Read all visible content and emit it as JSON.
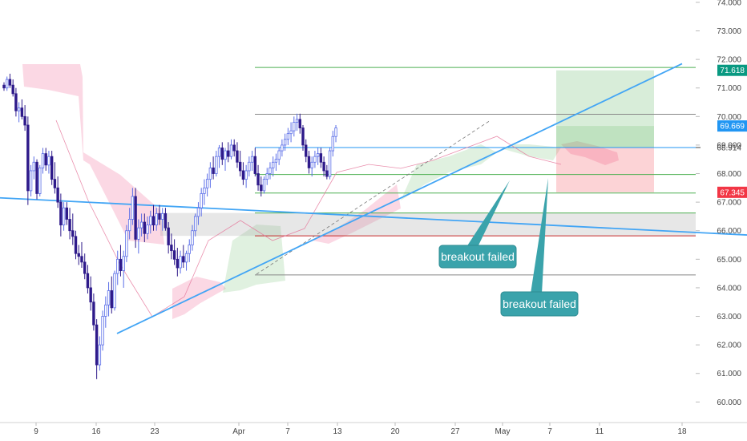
{
  "chart_data": {
    "type": "candlestick",
    "y_axis": {
      "ticks": [
        "60.000",
        "61.000",
        "62.000",
        "63.000",
        "64.000",
        "65.000",
        "66.000",
        "67.000",
        "68.000",
        "69.000",
        "70.000",
        "71.000",
        "72.000",
        "73.000",
        "74.000"
      ],
      "range": [
        59.5,
        74.2
      ],
      "position": "right"
    },
    "x_axis": {
      "ticks": [
        "9",
        "16",
        "23",
        "Apr",
        "7",
        "13",
        "20",
        "27",
        "May",
        "7",
        "11",
        "18"
      ]
    },
    "price_tags": [
      {
        "label": "71.618",
        "value": 71.618,
        "color": "#089981"
      },
      {
        "label": "69.669",
        "value": 69.669,
        "color": "#2196f3"
      },
      {
        "label": "68.914",
        "value": 68.914,
        "color": "none"
      },
      {
        "label": "67.345",
        "value": 67.345,
        "color": "#f23645"
      }
    ],
    "horizontal_levels": [
      {
        "value": 71.72,
        "color": "#4caf50"
      },
      {
        "value": 70.08,
        "color": "#888888"
      },
      {
        "value": 68.914,
        "color": "#2196f3"
      },
      {
        "value": 67.97,
        "color": "#4caf50"
      },
      {
        "value": 67.32,
        "color": "#4caf50"
      },
      {
        "value": 66.62,
        "color": "#4caf50"
      },
      {
        "value": 65.82,
        "color": "#c62828"
      },
      {
        "value": 64.45,
        "color": "#888888"
      }
    ],
    "trend_lines": [
      {
        "name": "ascending",
        "from": {
          "date": "Mar 19",
          "price": 62.4
        },
        "to": {
          "date": "May 18",
          "price": 71.85
        }
      },
      {
        "name": "descending",
        "from": {
          "date": "Feb 28",
          "price": 67.15
        },
        "to": {
          "date": "May 25",
          "price": 65.85
        }
      }
    ],
    "position_box": {
      "entry": 68.914,
      "target": 71.618,
      "stop": 67.345,
      "current": 69.669
    },
    "annotations": [
      {
        "text": "breakout failed",
        "anchor_date": "May 2",
        "anchor_price": 67.9
      },
      {
        "text": "breakout failed",
        "anchor_date": "May 7",
        "anchor_price": 67.75
      }
    ],
    "candles": [
      [
        71.1,
        71.2,
        70.9,
        71.0
      ],
      [
        71.0,
        71.4,
        70.9,
        71.3
      ],
      [
        71.3,
        71.5,
        71.0,
        71.1
      ],
      [
        71.1,
        71.3,
        70.7,
        70.8
      ],
      [
        70.8,
        71.0,
        70.0,
        70.2
      ],
      [
        70.2,
        70.5,
        69.8,
        70.3
      ],
      [
        70.3,
        70.6,
        69.9,
        70.0
      ],
      [
        70.0,
        70.4,
        69.5,
        69.7
      ],
      [
        69.7,
        70.0,
        66.9,
        67.4
      ],
      [
        67.4,
        68.3,
        67.2,
        68.1
      ],
      [
        68.1,
        68.6,
        67.8,
        68.4
      ],
      [
        68.4,
        68.5,
        67.1,
        67.3
      ],
      [
        67.3,
        68.3,
        67.2,
        68.2
      ],
      [
        68.2,
        68.9,
        68.0,
        68.7
      ],
      [
        68.7,
        68.9,
        68.1,
        68.3
      ],
      [
        68.3,
        68.8,
        68.0,
        68.6
      ],
      [
        68.6,
        68.8,
        67.6,
        67.8
      ],
      [
        67.8,
        68.4,
        67.3,
        67.5
      ],
      [
        67.5,
        67.9,
        66.8,
        67.0
      ],
      [
        67.0,
        67.3,
        65.8,
        66.2
      ],
      [
        66.2,
        67.0,
        66.0,
        66.8
      ],
      [
        66.8,
        67.0,
        66.2,
        66.4
      ],
      [
        66.4,
        66.8,
        65.7,
        66.0
      ],
      [
        66.0,
        66.6,
        65.5,
        65.8
      ],
      [
        65.8,
        66.0,
        65.0,
        65.2
      ],
      [
        65.2,
        65.5,
        64.8,
        65.1
      ],
      [
        65.1,
        65.6,
        64.7,
        64.9
      ],
      [
        64.9,
        65.2,
        64.3,
        64.5
      ],
      [
        64.5,
        64.8,
        63.8,
        64.0
      ],
      [
        64.0,
        64.4,
        63.2,
        63.5
      ],
      [
        63.5,
        63.8,
        62.5,
        62.7
      ],
      [
        62.7,
        62.9,
        60.8,
        61.3
      ],
      [
        61.3,
        62.3,
        61.1,
        62.0
      ],
      [
        62.0,
        63.2,
        61.8,
        63.0
      ],
      [
        63.0,
        63.7,
        62.6,
        63.4
      ],
      [
        63.4,
        64.2,
        63.0,
        63.9
      ],
      [
        63.9,
        64.4,
        63.1,
        63.3
      ],
      [
        63.3,
        64.6,
        63.2,
        64.5
      ],
      [
        64.5,
        65.3,
        64.1,
        65.0
      ],
      [
        65.0,
        65.5,
        64.4,
        64.6
      ],
      [
        64.6,
        65.3,
        64.0,
        65.1
      ],
      [
        65.1,
        66.2,
        64.9,
        66.0
      ],
      [
        66.0,
        66.8,
        65.7,
        66.4
      ],
      [
        66.4,
        67.5,
        66.2,
        67.2
      ],
      [
        67.2,
        67.5,
        65.4,
        65.7
      ],
      [
        65.7,
        66.4,
        65.2,
        66.1
      ],
      [
        66.1,
        66.6,
        65.8,
        66.3
      ],
      [
        66.3,
        66.6,
        65.6,
        65.9
      ],
      [
        65.9,
        66.5,
        65.7,
        66.2
      ],
      [
        66.2,
        66.7,
        65.9,
        66.5
      ],
      [
        66.5,
        66.9,
        66.0,
        66.2
      ],
      [
        66.2,
        66.8,
        66.0,
        66.6
      ],
      [
        66.6,
        66.9,
        66.2,
        66.4
      ],
      [
        66.4,
        66.8,
        66.0,
        66.6
      ],
      [
        66.6,
        66.8,
        66.0,
        66.1
      ],
      [
        66.1,
        66.3,
        65.2,
        65.5
      ],
      [
        65.5,
        65.9,
        65.0,
        65.3
      ],
      [
        65.3,
        65.7,
        64.8,
        65.0
      ],
      [
        65.0,
        65.4,
        64.4,
        64.7
      ],
      [
        64.7,
        65.3,
        64.5,
        65.1
      ],
      [
        65.1,
        65.5,
        64.7,
        64.9
      ],
      [
        64.9,
        65.3,
        64.6,
        65.2
      ],
      [
        65.2,
        65.7,
        64.9,
        65.5
      ],
      [
        65.5,
        66.2,
        65.3,
        66.0
      ],
      [
        66.0,
        66.6,
        65.8,
        66.5
      ],
      [
        66.5,
        67.0,
        66.2,
        66.8
      ],
      [
        66.8,
        67.5,
        66.5,
        67.3
      ],
      [
        67.3,
        67.8,
        66.9,
        67.5
      ],
      [
        67.5,
        68.0,
        67.2,
        67.8
      ],
      [
        67.8,
        68.4,
        67.5,
        68.2
      ],
      [
        68.2,
        68.6,
        67.8,
        68.0
      ],
      [
        68.0,
        68.8,
        67.9,
        68.6
      ],
      [
        68.6,
        69.0,
        68.2,
        68.9
      ],
      [
        68.9,
        69.1,
        68.3,
        68.5
      ],
      [
        68.5,
        68.9,
        68.1,
        68.8
      ],
      [
        68.8,
        69.1,
        68.4,
        68.6
      ],
      [
        68.6,
        69.2,
        68.5,
        69.0
      ],
      [
        69.0,
        69.2,
        68.6,
        68.8
      ],
      [
        68.8,
        69.1,
        68.2,
        68.4
      ],
      [
        68.4,
        68.8,
        67.9,
        68.1
      ],
      [
        68.1,
        68.4,
        67.6,
        67.8
      ],
      [
        67.8,
        68.3,
        67.5,
        68.1
      ],
      [
        68.1,
        68.6,
        67.9,
        68.4
      ],
      [
        68.4,
        68.8,
        68.1,
        68.6
      ],
      [
        68.6,
        68.9,
        67.9,
        68.0
      ],
      [
        68.0,
        68.3,
        67.4,
        67.6
      ],
      [
        67.6,
        67.9,
        67.2,
        67.4
      ],
      [
        67.4,
        67.9,
        67.3,
        67.8
      ],
      [
        67.8,
        68.2,
        67.6,
        68.0
      ],
      [
        68.0,
        68.4,
        67.8,
        68.2
      ],
      [
        68.2,
        68.6,
        67.9,
        68.4
      ],
      [
        68.4,
        68.7,
        68.1,
        68.5
      ],
      [
        68.5,
        68.9,
        68.3,
        68.8
      ],
      [
        68.8,
        69.2,
        68.6,
        69.0
      ],
      [
        69.0,
        69.4,
        68.8,
        69.2
      ],
      [
        69.2,
        69.6,
        69.0,
        69.4
      ],
      [
        69.4,
        69.8,
        69.1,
        69.5
      ],
      [
        69.5,
        70.0,
        69.3,
        69.8
      ],
      [
        69.8,
        70.1,
        69.5,
        69.9
      ],
      [
        69.9,
        70.1,
        69.4,
        69.6
      ],
      [
        69.6,
        69.7,
        68.8,
        69.0
      ],
      [
        69.0,
        69.2,
        68.4,
        68.6
      ],
      [
        68.6,
        68.8,
        68.0,
        68.2
      ],
      [
        68.2,
        68.6,
        67.9,
        68.4
      ],
      [
        68.4,
        68.8,
        68.2,
        68.6
      ],
      [
        68.6,
        68.9,
        68.3,
        68.7
      ],
      [
        68.7,
        68.9,
        68.2,
        68.4
      ],
      [
        68.4,
        68.6,
        67.9,
        68.1
      ],
      [
        68.1,
        68.3,
        67.8,
        67.9
      ],
      [
        67.9,
        68.9,
        67.8,
        68.8
      ],
      [
        68.8,
        69.5,
        68.6,
        69.3
      ],
      [
        69.3,
        69.7,
        69.1,
        69.6
      ]
    ]
  }
}
